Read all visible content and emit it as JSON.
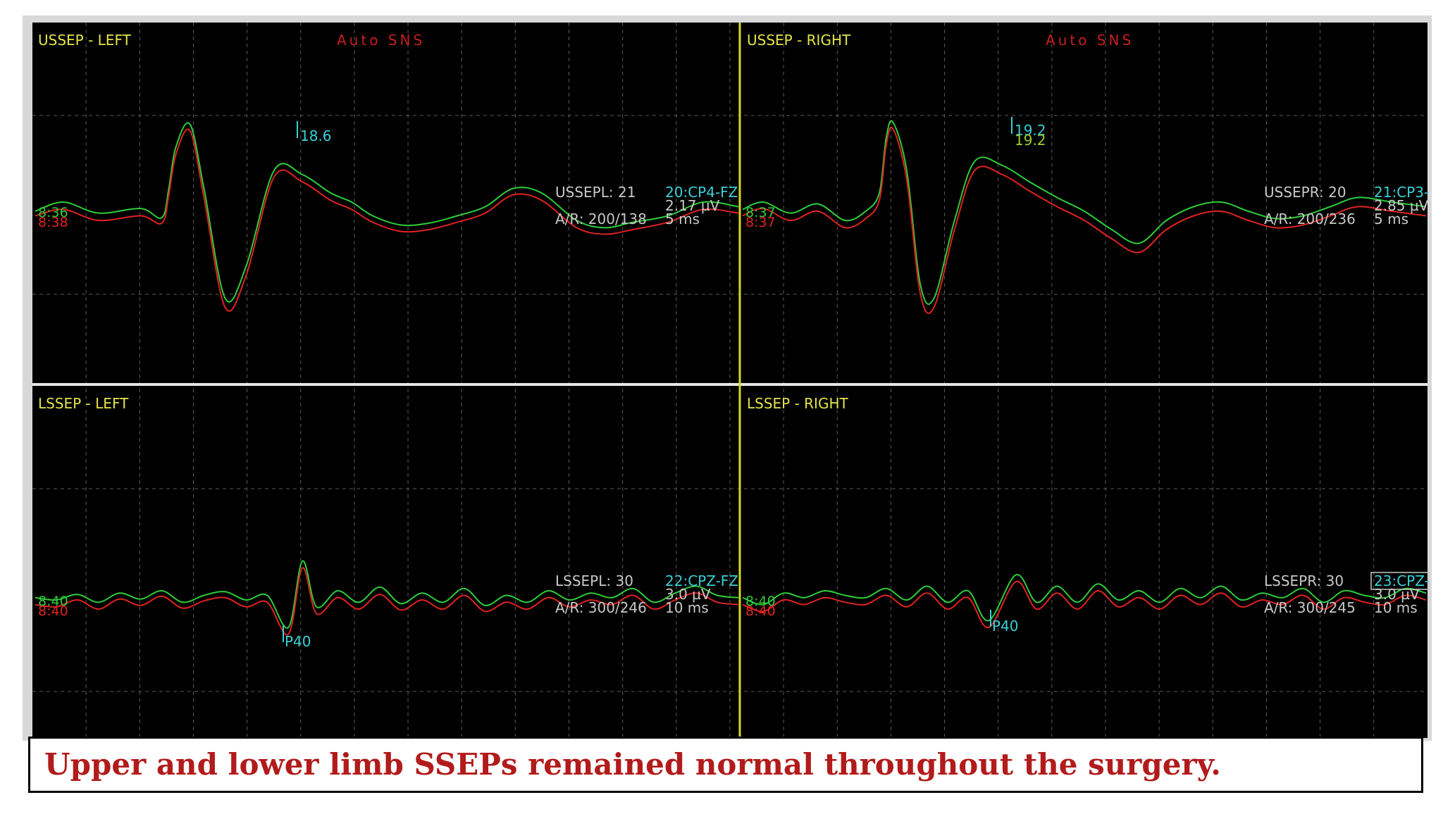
{
  "caption": "Upper and lower limb SSEPs remained normal throughout the surgery.",
  "colors": {
    "background": "#000000",
    "trace_current": "#2ecc3a",
    "trace_baseline": "#e02222",
    "title": "#e4e44a",
    "auto_sns": "#c81e1e",
    "channel": "#3ad0d8",
    "info": "#c8c8c8",
    "caption": "#b21b1b"
  },
  "chart_data": [
    {
      "type": "line",
      "title": "USSEP - LEFT",
      "auto_label": "Auto SNS",
      "trace_times": [
        "8:36",
        "8:38"
      ],
      "info": {
        "id": "USSEPL: 21",
        "ar": "A/R: 200/138",
        "channel": "20:CP4-FZ",
        "amplitude": "2.17 µV",
        "timebase": "5 ms"
      },
      "peaks": [
        {
          "label": "18.6",
          "x": 0.19
        }
      ],
      "series": [
        {
          "color": "green",
          "x": [
            0,
            0.04,
            0.09,
            0.15,
            0.18,
            0.19,
            0.2,
            0.22,
            0.24,
            0.27,
            0.3,
            0.34,
            0.38,
            0.42,
            0.45,
            0.48,
            0.52,
            0.56,
            0.6,
            0.64,
            0.68,
            0.72,
            0.77,
            0.81,
            0.85,
            0.9,
            0.95,
            1.0
          ],
          "y": [
            0,
            0.1,
            -0.02,
            0.03,
            -0.07,
            0.25,
            0.7,
            0.95,
            0.25,
            -0.95,
            -0.6,
            0.45,
            0.4,
            0.2,
            0.1,
            -0.05,
            -0.15,
            -0.13,
            -0.05,
            0.05,
            0.25,
            0.2,
            -0.1,
            -0.18,
            -0.12,
            -0.05,
            0.1,
            0.05
          ]
        },
        {
          "color": "red",
          "x": [
            0,
            0.04,
            0.09,
            0.15,
            0.18,
            0.19,
            0.2,
            0.22,
            0.24,
            0.27,
            0.3,
            0.34,
            0.38,
            0.42,
            0.45,
            0.48,
            0.52,
            0.56,
            0.6,
            0.64,
            0.68,
            0.72,
            0.77,
            0.81,
            0.85,
            0.9,
            0.95,
            1.0
          ],
          "y": [
            -0.05,
            0.02,
            -0.1,
            -0.05,
            -0.13,
            0.18,
            0.62,
            0.88,
            0.15,
            -1.05,
            -0.7,
            0.38,
            0.32,
            0.12,
            0.02,
            -0.12,
            -0.22,
            -0.2,
            -0.12,
            -0.02,
            0.18,
            0.12,
            -0.18,
            -0.25,
            -0.2,
            -0.12,
            0.02,
            -0.02
          ]
        }
      ]
    },
    {
      "type": "line",
      "title": "USSEP - RIGHT",
      "auto_label": "Auto SNS",
      "trace_times": [
        "8:37",
        "8:37"
      ],
      "info": {
        "id": "USSEPR: 20",
        "ar": "A/R: 200/236",
        "channel": "21:CP3-",
        "amplitude": "2.85 µV",
        "timebase": "5 ms"
      },
      "peaks": [
        {
          "label": "19.2",
          "x": 0.2
        },
        {
          "label": "19.2",
          "x": 0.2
        }
      ],
      "series": [
        {
          "color": "green",
          "x": [
            0,
            0.03,
            0.07,
            0.11,
            0.15,
            0.18,
            0.2,
            0.21,
            0.22,
            0.24,
            0.26,
            0.28,
            0.31,
            0.34,
            0.38,
            0.42,
            0.46,
            0.5,
            0.54,
            0.58,
            0.62,
            0.66,
            0.7,
            0.74,
            0.78,
            0.82,
            0.86,
            0.9,
            0.95,
            1.0
          ],
          "y": [
            0.02,
            0.1,
            -0.02,
            0.08,
            -0.1,
            0.0,
            0.2,
            0.8,
            0.97,
            0.45,
            -0.8,
            -0.95,
            -0.1,
            0.55,
            0.5,
            0.32,
            0.15,
            0.0,
            -0.2,
            -0.35,
            -0.1,
            0.05,
            0.1,
            0.0,
            -0.08,
            -0.05,
            0.05,
            0.15,
            0.1,
            0.05
          ]
        },
        {
          "color": "red",
          "x": [
            0,
            0.03,
            0.07,
            0.11,
            0.15,
            0.18,
            0.2,
            0.21,
            0.22,
            0.24,
            0.26,
            0.28,
            0.31,
            0.34,
            0.38,
            0.42,
            0.46,
            0.5,
            0.54,
            0.58,
            0.62,
            0.66,
            0.7,
            0.74,
            0.78,
            0.82,
            0.86,
            0.9,
            0.95,
            1.0
          ],
          "y": [
            -0.05,
            0.03,
            -0.1,
            0.0,
            -0.18,
            -0.08,
            0.12,
            0.72,
            0.9,
            0.35,
            -0.9,
            -1.05,
            -0.2,
            0.45,
            0.4,
            0.22,
            0.05,
            -0.1,
            -0.3,
            -0.45,
            -0.2,
            -0.05,
            0.0,
            -0.1,
            -0.18,
            -0.15,
            -0.05,
            0.05,
            0.0,
            -0.05
          ]
        }
      ]
    },
    {
      "type": "line",
      "title": "LSSEP - LEFT",
      "auto_label": "",
      "trace_times": [
        "8:40",
        "8:40"
      ],
      "info": {
        "id": "LSSEPL: 30",
        "ar": "A/R: 300/246",
        "channel": "22:CPZ-FZ",
        "amplitude": "3.0 µV",
        "timebase": "10 ms"
      },
      "peaks": [
        {
          "label": "P40",
          "x": 0.36
        }
      ],
      "series": [
        {
          "color": "green",
          "x": [
            0,
            0.03,
            0.06,
            0.09,
            0.12,
            0.15,
            0.18,
            0.21,
            0.24,
            0.27,
            0.3,
            0.33,
            0.36,
            0.38,
            0.4,
            0.43,
            0.46,
            0.49,
            0.52,
            0.55,
            0.58,
            0.61,
            0.64,
            0.67,
            0.7,
            0.73,
            0.76,
            0.79,
            0.82,
            0.85,
            0.88,
            0.91,
            0.94,
            0.97,
            1.0
          ],
          "y": [
            0.05,
            0.0,
            0.12,
            -0.05,
            0.15,
            0.02,
            0.2,
            -0.05,
            0.1,
            0.18,
            0.0,
            0.1,
            -0.6,
            0.85,
            -0.15,
            0.2,
            -0.05,
            0.28,
            -0.08,
            0.15,
            -0.05,
            0.25,
            -0.12,
            0.1,
            -0.05,
            0.2,
            0.0,
            0.15,
            0.05,
            0.25,
            -0.05,
            0.15,
            0.3,
            0.1,
            0.05
          ]
        },
        {
          "color": "red",
          "x": [
            0,
            0.03,
            0.06,
            0.09,
            0.12,
            0.15,
            0.18,
            0.21,
            0.24,
            0.27,
            0.3,
            0.33,
            0.36,
            0.38,
            0.4,
            0.43,
            0.46,
            0.49,
            0.52,
            0.55,
            0.58,
            0.61,
            0.64,
            0.67,
            0.7,
            0.73,
            0.76,
            0.79,
            0.82,
            0.85,
            0.88,
            0.91,
            0.94,
            0.97,
            1.0
          ],
          "y": [
            -0.1,
            -0.15,
            0.0,
            -0.2,
            0.02,
            -0.12,
            0.08,
            -0.18,
            -0.02,
            0.05,
            -0.15,
            -0.05,
            -0.75,
            0.7,
            -0.3,
            0.05,
            -0.2,
            0.12,
            -0.22,
            0.0,
            -0.2,
            0.1,
            -0.25,
            -0.05,
            -0.2,
            0.05,
            -0.15,
            0.0,
            -0.1,
            0.1,
            -0.2,
            0.0,
            0.15,
            -0.05,
            -0.1
          ]
        }
      ]
    },
    {
      "type": "line",
      "title": "LSSEP - RIGHT",
      "auto_label": "",
      "trace_times": [
        "8:40",
        "8:40"
      ],
      "info": {
        "id": "LSSEPR: 30",
        "ar": "A/R: 300/245",
        "channel": "23:CPZ-",
        "amplitude": "3.0 µV",
        "timebase": "10 ms"
      },
      "peaks": [
        {
          "label": "P40",
          "x": 0.36
        }
      ],
      "series": [
        {
          "color": "green",
          "x": [
            0,
            0.03,
            0.06,
            0.09,
            0.12,
            0.15,
            0.18,
            0.21,
            0.24,
            0.27,
            0.3,
            0.33,
            0.36,
            0.4,
            0.43,
            0.46,
            0.49,
            0.52,
            0.55,
            0.58,
            0.61,
            0.64,
            0.67,
            0.7,
            0.73,
            0.76,
            0.79,
            0.82,
            0.85,
            0.88,
            0.91,
            0.94,
            0.97,
            1.0
          ],
          "y": [
            0.05,
            -0.1,
            0.15,
            0.05,
            0.2,
            0.1,
            0.05,
            0.25,
            0.0,
            0.3,
            -0.05,
            0.2,
            -0.45,
            0.55,
            -0.05,
            0.3,
            -0.05,
            0.35,
            0.0,
            0.2,
            -0.05,
            0.25,
            0.05,
            0.3,
            0.0,
            0.15,
            0.05,
            0.25,
            -0.05,
            0.2,
            0.1,
            0.05,
            0.25,
            0.15
          ]
        },
        {
          "color": "red",
          "x": [
            0,
            0.03,
            0.06,
            0.09,
            0.12,
            0.15,
            0.18,
            0.21,
            0.24,
            0.27,
            0.3,
            0.33,
            0.36,
            0.4,
            0.43,
            0.46,
            0.49,
            0.52,
            0.55,
            0.58,
            0.61,
            0.64,
            0.67,
            0.7,
            0.73,
            0.76,
            0.79,
            0.82,
            0.85,
            0.88,
            0.91,
            0.94,
            0.97,
            1.0
          ],
          "y": [
            -0.1,
            -0.25,
            0.0,
            -0.1,
            0.05,
            -0.05,
            -0.1,
            0.1,
            -0.15,
            0.15,
            -0.2,
            0.05,
            -0.6,
            0.4,
            -0.2,
            0.15,
            -0.2,
            0.2,
            -0.15,
            0.05,
            -0.2,
            0.1,
            -0.1,
            0.15,
            -0.15,
            0.0,
            -0.1,
            0.1,
            -0.2,
            0.05,
            -0.05,
            -0.1,
            0.1,
            0.0
          ]
        }
      ]
    }
  ]
}
